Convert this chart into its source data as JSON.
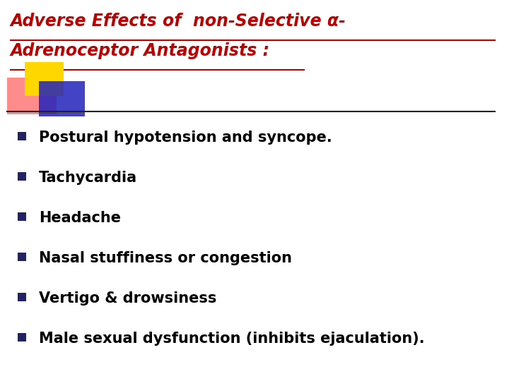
{
  "title_line1": "Adverse Effects of  non-Selective α-",
  "title_line2": "Adrenoceptor Antagonists :",
  "title_color": "#BB0000",
  "title_fontsize": 17,
  "bullet_items": [
    "Postural hypotension and syncope.",
    "Tachycardia",
    "Headache",
    "Nasal stuffiness or congestion",
    "Vertigo & drowsiness",
    "Male sexual dysfunction (inhibits ejaculation)."
  ],
  "bullet_color": "#000000",
  "bullet_fontsize": 15,
  "background_color": "#FFFFFF",
  "sq_yellow": "#FFD700",
  "sq_pink": "#FF6666",
  "sq_blue": "#2222BB",
  "line_color": "#222222",
  "bullet_square_color": "#222266"
}
